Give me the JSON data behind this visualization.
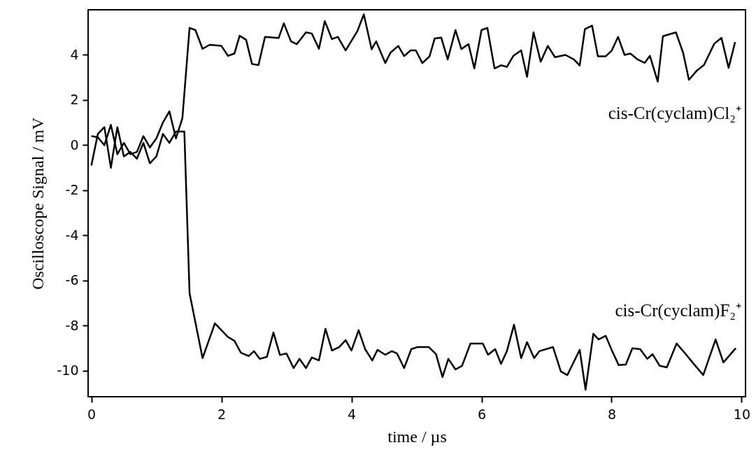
{
  "chart_data": {
    "type": "line",
    "xlabel": "time / µs",
    "ylabel": "Oscilloscope Signal / mV",
    "xlim": [
      -0.05,
      10.06
    ],
    "ylim": [
      -11.15,
      6.0
    ],
    "xticks": [
      0,
      2,
      4,
      6,
      8,
      10
    ],
    "yticks": [
      -10,
      -8,
      -6,
      -4,
      -2,
      0,
      2,
      4
    ],
    "grid": false,
    "marker": "none",
    "line_style": "solid",
    "series": [
      {
        "name": "cis-Cr(cyclam)Cl₂⁺",
        "color": "#000000",
        "x": [
          0,
          0.1,
          0.2,
          0.3,
          0.4,
          0.5,
          0.6,
          0.7,
          0.8,
          0.9,
          1.0,
          1.1,
          1.2,
          1.3,
          1.4,
          1.51,
          1.6,
          1.71,
          1.82,
          2.0,
          2.1,
          2.2,
          2.28,
          2.38,
          2.47,
          2.57,
          2.67,
          2.88,
          2.96,
          3.07,
          3.16,
          3.3,
          3.39,
          3.5,
          3.59,
          3.7,
          3.79,
          3.91,
          4.09,
          4.19,
          4.31,
          4.38,
          4.52,
          4.6,
          4.72,
          4.81,
          4.91,
          4.99,
          5.09,
          5.2,
          5.28,
          5.38,
          5.48,
          5.6,
          5.69,
          5.8,
          5.89,
          6.0,
          6.09,
          6.2,
          6.3,
          6.39,
          6.49,
          6.61,
          6.7,
          6.8,
          6.91,
          7.02,
          7.13,
          7.29,
          7.42,
          7.51,
          7.59,
          7.7,
          7.79,
          7.91,
          8.0,
          8.1,
          8.2,
          8.29,
          8.4,
          8.51,
          8.59,
          8.71,
          8.79,
          8.99,
          9.1,
          9.19,
          9.31,
          9.42,
          9.58,
          9.69,
          9.8,
          9.9
        ],
        "values": [
          0.4,
          0.35,
          0.0,
          0.9,
          -0.4,
          0.1,
          -0.4,
          -0.3,
          0.4,
          -0.1,
          0.3,
          1.0,
          1.5,
          0.3,
          1.2,
          5.2,
          5.1,
          4.27,
          4.45,
          4.4,
          3.96,
          4.06,
          4.85,
          4.67,
          3.6,
          3.55,
          4.8,
          4.75,
          5.4,
          4.6,
          4.48,
          5.0,
          4.95,
          4.27,
          5.5,
          4.7,
          4.8,
          4.2,
          5.05,
          5.8,
          4.25,
          4.6,
          3.64,
          4.1,
          4.4,
          3.95,
          4.2,
          4.2,
          3.64,
          3.93,
          4.73,
          4.77,
          3.8,
          5.1,
          4.26,
          4.48,
          3.4,
          5.1,
          5.2,
          3.4,
          3.54,
          3.47,
          3.96,
          4.2,
          3.03,
          5.0,
          3.7,
          4.4,
          3.9,
          4.0,
          3.8,
          3.53,
          5.14,
          5.3,
          3.94,
          3.94,
          4.18,
          4.8,
          4.0,
          4.06,
          3.8,
          3.65,
          3.96,
          2.82,
          4.83,
          5.0,
          4.1,
          2.9,
          3.3,
          3.55,
          4.5,
          4.76,
          3.43,
          4.57
        ]
      },
      {
        "name": "cis-Cr(cyclam)F₂⁺",
        "color": "#000000",
        "x": [
          0,
          0.1,
          0.2,
          0.3,
          0.4,
          0.5,
          0.6,
          0.7,
          0.8,
          0.9,
          1.0,
          1.1,
          1.2,
          1.3,
          1.43,
          1.51,
          1.71,
          1.9,
          2.1,
          2.2,
          2.3,
          2.42,
          2.5,
          2.59,
          2.7,
          2.8,
          2.9,
          3.0,
          3.11,
          3.2,
          3.3,
          3.39,
          3.5,
          3.6,
          3.7,
          3.81,
          3.91,
          4.0,
          4.11,
          4.21,
          4.32,
          4.4,
          4.52,
          4.62,
          4.7,
          4.81,
          4.92,
          5.01,
          5.19,
          5.3,
          5.4,
          5.49,
          5.6,
          5.7,
          5.83,
          6.02,
          6.1,
          6.21,
          6.3,
          6.39,
          6.5,
          6.61,
          6.7,
          6.81,
          6.89,
          7.1,
          7.22,
          7.32,
          7.51,
          7.6,
          7.72,
          7.8,
          7.91,
          8.01,
          8.11,
          8.22,
          8.32,
          8.44,
          8.55,
          8.63,
          8.74,
          8.85,
          9.0,
          9.14,
          9.28,
          9.41,
          9.6,
          9.72,
          9.91
        ],
        "values": [
          -0.9,
          0.5,
          0.8,
          -1.0,
          0.8,
          -0.5,
          -0.3,
          -0.6,
          0.1,
          -0.8,
          -0.5,
          0.5,
          0.1,
          0.6,
          0.6,
          -6.56,
          -9.44,
          -7.9,
          -8.5,
          -8.67,
          -9.2,
          -9.35,
          -9.13,
          -9.47,
          -9.38,
          -8.3,
          -9.3,
          -9.23,
          -9.88,
          -9.47,
          -9.88,
          -9.41,
          -9.54,
          -8.14,
          -9.1,
          -8.95,
          -8.64,
          -9.1,
          -8.2,
          -9.04,
          -9.54,
          -9.07,
          -9.29,
          -9.13,
          -9.23,
          -9.88,
          -9.04,
          -8.95,
          -8.95,
          -9.26,
          -10.28,
          -9.47,
          -9.94,
          -9.78,
          -8.79,
          -8.79,
          -9.29,
          -9.04,
          -9.69,
          -9.13,
          -7.96,
          -9.44,
          -8.73,
          -9.44,
          -9.13,
          -8.95,
          -10.03,
          -10.19,
          -9.07,
          -10.84,
          -8.36,
          -8.61,
          -8.45,
          -9.13,
          -9.75,
          -9.72,
          -9.0,
          -9.04,
          -9.47,
          -9.26,
          -9.78,
          -9.85,
          -8.79,
          -9.26,
          -9.75,
          -10.19,
          -8.61,
          -9.63,
          -9.0
        ]
      }
    ]
  }
}
